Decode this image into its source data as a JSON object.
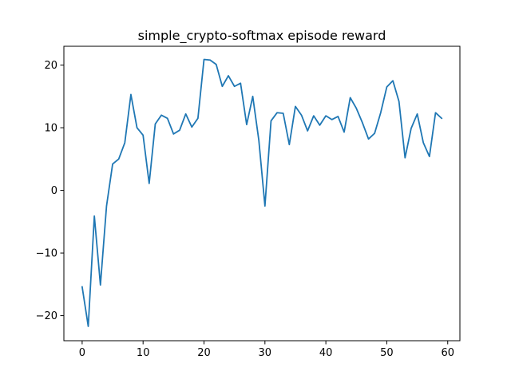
{
  "chart_data": {
    "type": "line",
    "title": "simple_crypto-softmax episode reward",
    "xlabel": "",
    "ylabel": "",
    "xlim": [
      -3,
      62
    ],
    "ylim": [
      -24.0,
      23.0
    ],
    "xticks": [
      0,
      10,
      20,
      30,
      40,
      50,
      60
    ],
    "yticks": [
      -20,
      -10,
      0,
      10,
      20
    ],
    "grid": false,
    "line_color": "#1f77b4",
    "series": [
      {
        "x": [
          0,
          1,
          2,
          3,
          4,
          5,
          6,
          7,
          8,
          9,
          10,
          11,
          12,
          13,
          14,
          15,
          16,
          17,
          18,
          19,
          20,
          21,
          22,
          23,
          24,
          25,
          26,
          27,
          28,
          29,
          30,
          31,
          32,
          33,
          34,
          35,
          36,
          37,
          38,
          39,
          40,
          41,
          42,
          43,
          44,
          45,
          46,
          47,
          48,
          49,
          50,
          51,
          52,
          53,
          54,
          55,
          56,
          57,
          58,
          59
        ],
        "values": [
          -15.4,
          -21.7,
          -4.1,
          -15.1,
          -2.5,
          4.2,
          5.0,
          7.6,
          15.3,
          10.0,
          8.8,
          1.1,
          10.6,
          12.0,
          11.5,
          9.0,
          9.6,
          12.2,
          10.1,
          11.5,
          20.9,
          20.8,
          20.1,
          16.6,
          18.3,
          16.6,
          17.1,
          10.5,
          15.0,
          8.0,
          -2.5,
          11.1,
          12.4,
          12.3,
          7.3,
          13.4,
          12.0,
          9.5,
          11.9,
          10.4,
          11.9,
          11.3,
          11.8,
          9.3,
          14.8,
          13.1,
          10.8,
          8.2,
          9.1,
          12.4,
          16.5,
          17.5,
          14.2,
          5.2,
          9.9,
          12.2,
          7.6,
          5.4,
          12.4,
          11.5
        ]
      }
    ]
  }
}
